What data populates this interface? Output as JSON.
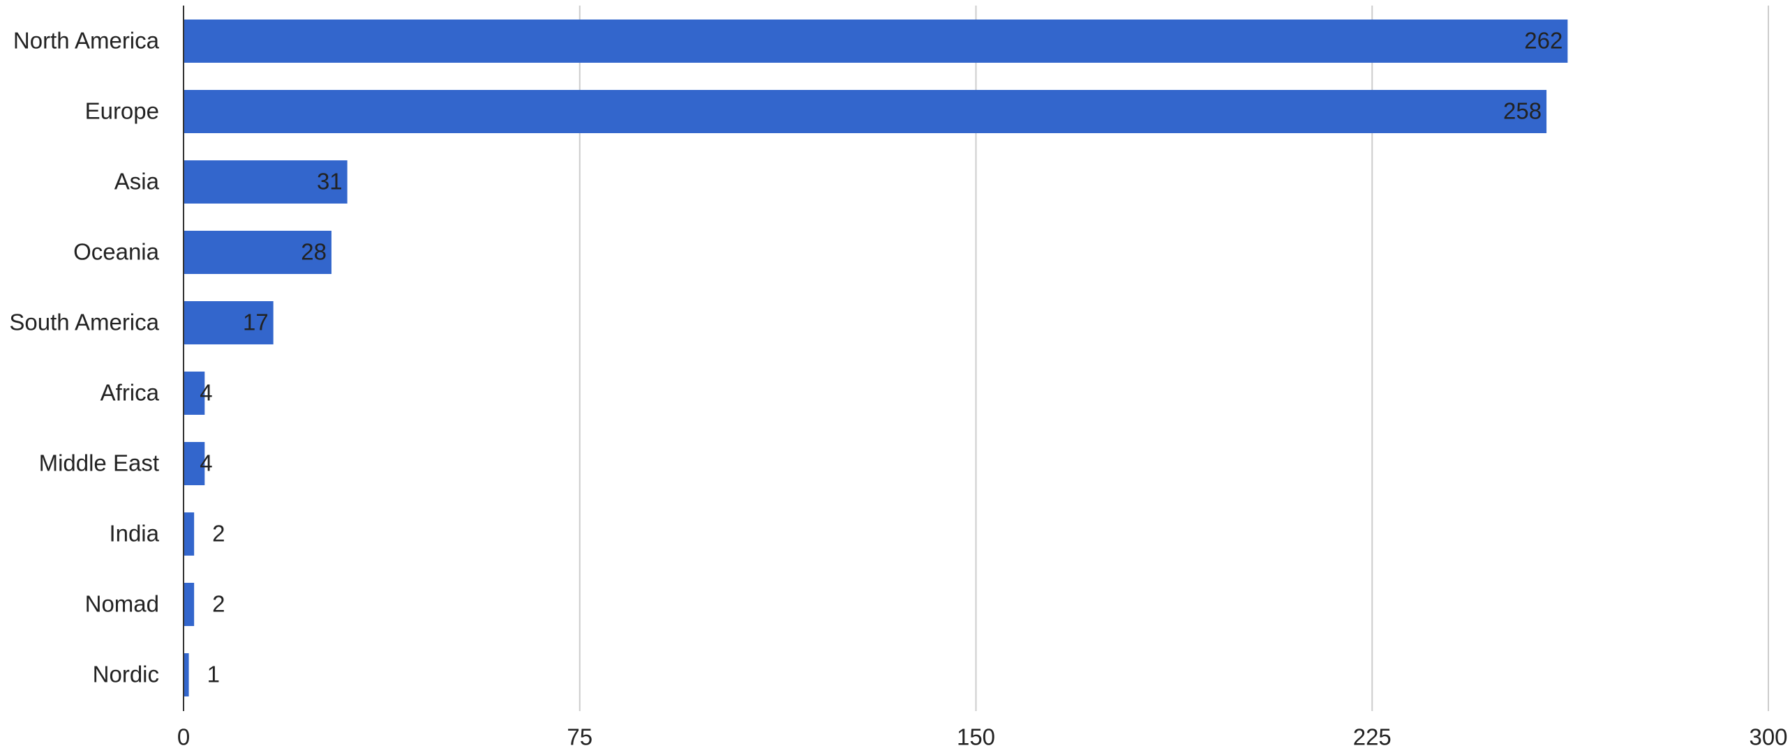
{
  "chart_data": {
    "type": "bar",
    "orientation": "horizontal",
    "categories": [
      "North America",
      "Europe",
      "Asia",
      "Oceania",
      "South America",
      "Africa",
      "Middle East",
      "India",
      "Nomad",
      "Nordic"
    ],
    "values": [
      262,
      258,
      31,
      28,
      17,
      4,
      4,
      2,
      2,
      1
    ],
    "color": "#3366cc",
    "xlim": [
      0,
      300
    ],
    "xticks": [
      0,
      75,
      150,
      225,
      300
    ],
    "grid": true
  }
}
